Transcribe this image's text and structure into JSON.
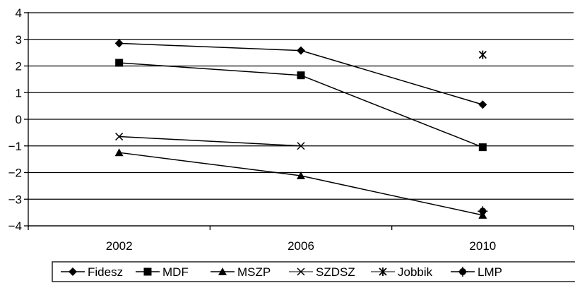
{
  "chart_data": {
    "type": "line",
    "title": "",
    "xlabel": "",
    "ylabel": "",
    "categories": [
      "2002",
      "2006",
      "2010"
    ],
    "ylim": [
      -4,
      4
    ],
    "yticks": [
      4,
      3,
      2,
      1,
      0,
      -1,
      -2,
      -3,
      -4
    ],
    "grid": "horizontal",
    "legend_position": "bottom",
    "series": [
      {
        "name": "Fidesz",
        "marker": "diamond",
        "values": [
          2.85,
          2.58,
          0.55
        ]
      },
      {
        "name": "MDF",
        "marker": "square",
        "values": [
          2.12,
          1.65,
          -1.05
        ]
      },
      {
        "name": "MSZP",
        "marker": "triangle",
        "values": [
          -1.25,
          -2.12,
          -3.6
        ]
      },
      {
        "name": "SZDSZ",
        "marker": "x",
        "values": [
          -0.65,
          -1.0,
          null
        ]
      },
      {
        "name": "Jobbik",
        "marker": "star",
        "values": [
          null,
          null,
          2.42
        ]
      },
      {
        "name": "LMP",
        "marker": "circle",
        "values": [
          null,
          null,
          -3.45
        ]
      }
    ]
  },
  "colors": {
    "line": "#000000",
    "grid": "#000000",
    "background": "#ffffff"
  }
}
